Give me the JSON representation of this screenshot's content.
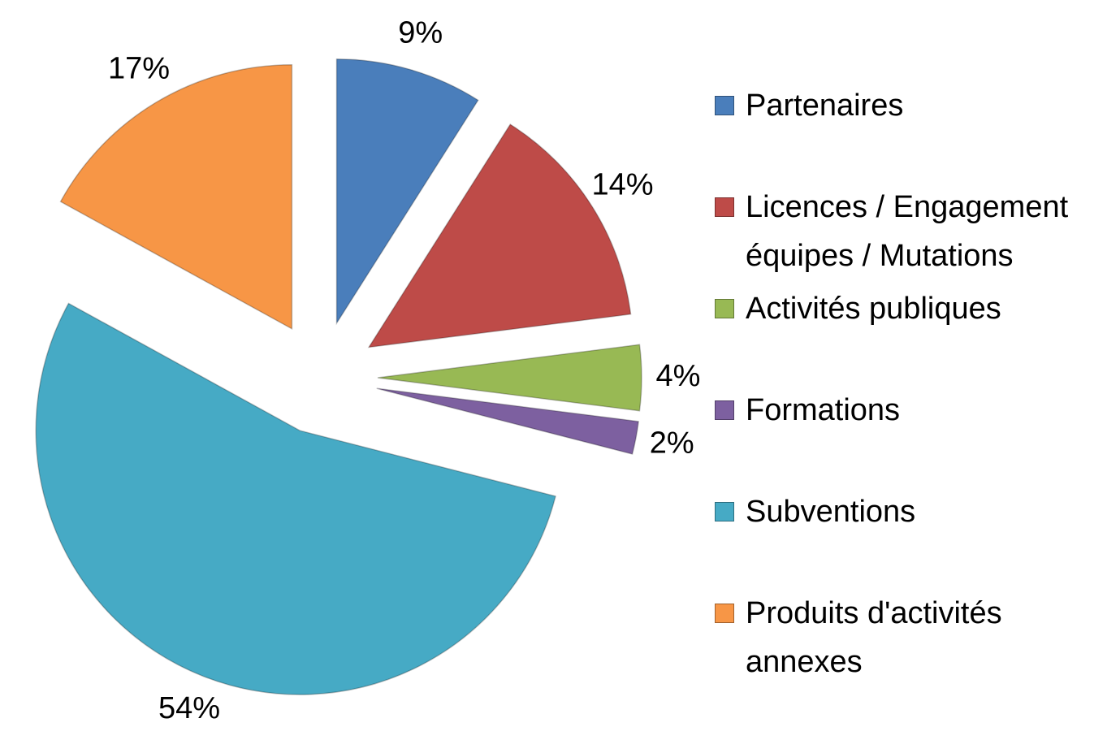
{
  "chart_data": {
    "type": "pie",
    "categories": [
      "Partenaires",
      "Licences / Engagement équipes / Mutations",
      "Activités publiques",
      "Formations",
      "Subventions",
      "Produits d'activités annexes"
    ],
    "values": [
      9,
      14,
      4,
      2,
      54,
      17
    ],
    "value_labels": [
      "9%",
      "14%",
      "4%",
      "2%",
      "54%",
      "17%"
    ],
    "colors": [
      "#4a7ebb",
      "#be4b48",
      "#98b954",
      "#7d60a0",
      "#46aac5",
      "#f79646"
    ],
    "legend": "right"
  }
}
